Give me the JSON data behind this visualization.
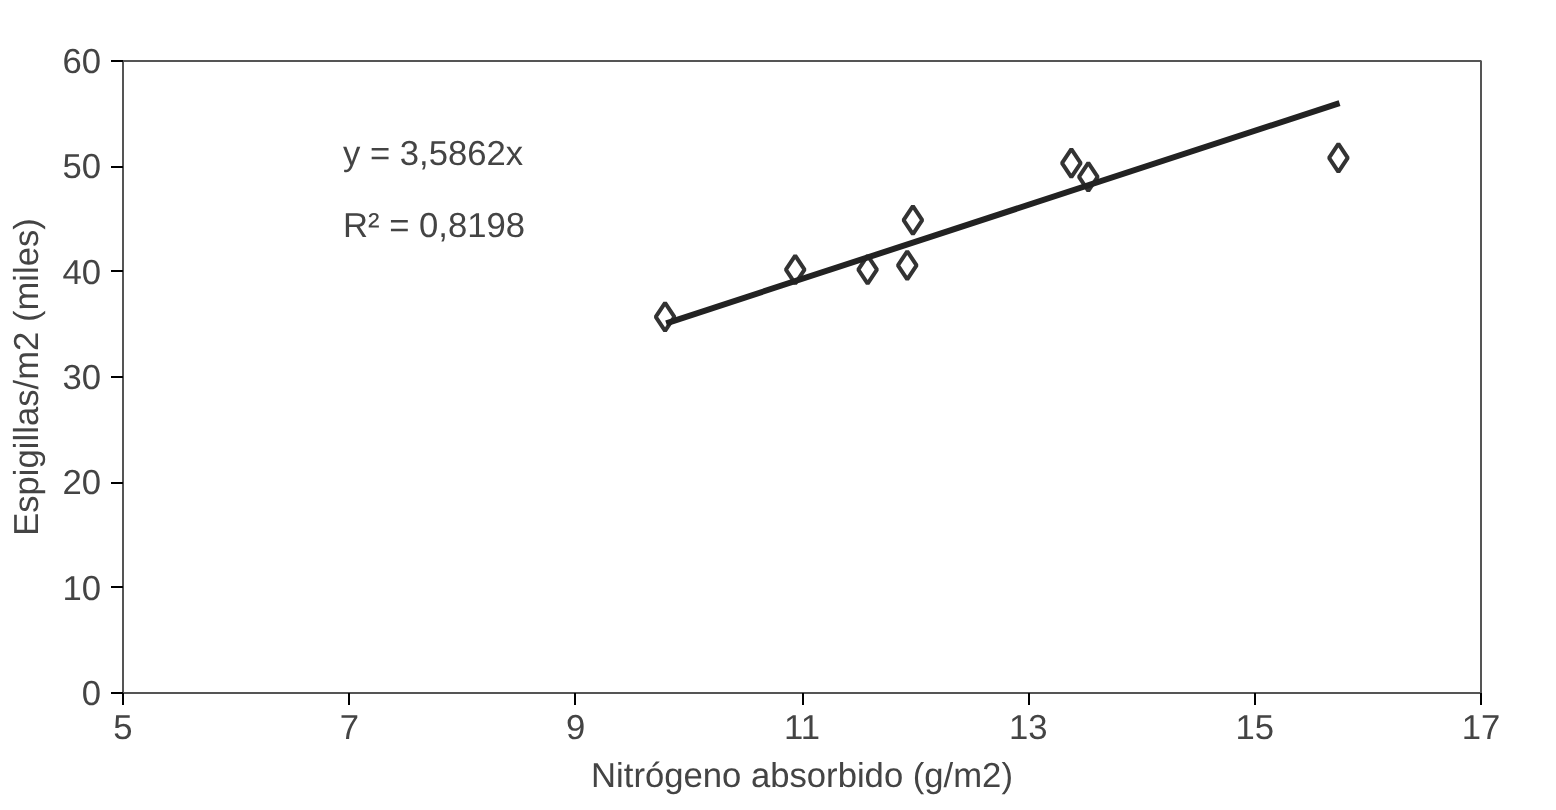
{
  "chart_data": {
    "type": "scatter",
    "xlabel": "Nitrógeno absorbido (g/m2)",
    "ylabel": "Espigillas/m2 (miles)",
    "xlim": [
      5,
      17
    ],
    "xticks": [
      5,
      7,
      9,
      11,
      13,
      15,
      17
    ],
    "ylim": [
      0,
      60
    ],
    "yticks": [
      0,
      10,
      20,
      30,
      40,
      50,
      60
    ],
    "grid": false,
    "marker": "diamond",
    "series": [
      {
        "color": "#333333",
        "x": [
          9.79,
          10.94,
          11.58,
          11.93,
          11.98,
          13.38,
          13.53,
          15.74
        ],
        "values": [
          35.7,
          40.2,
          40.2,
          40.6,
          44.9,
          50.3,
          49.0,
          50.8
        ]
      },
      {
        "type": "line",
        "marker": "none",
        "color": "#222222",
        "x": [
          9.8,
          15.75
        ],
        "values": [
          35.1,
          56.0
        ]
      }
    ],
    "annotations": [
      "y = 3,5862x",
      "R² = 0,8198"
    ]
  }
}
